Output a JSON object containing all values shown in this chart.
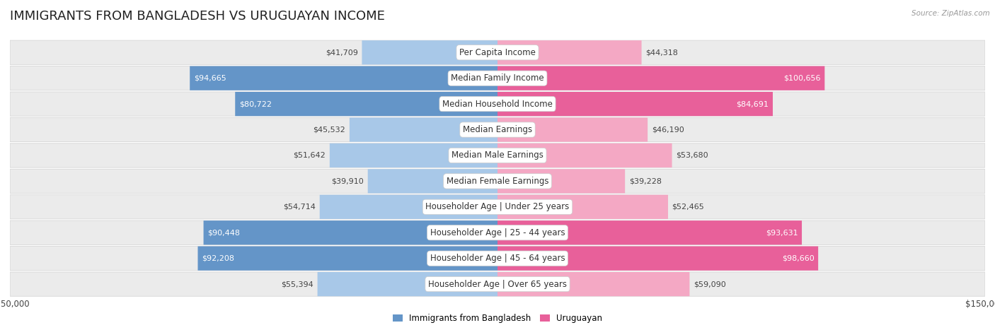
{
  "title": "IMMIGRANTS FROM BANGLADESH VS URUGUAYAN INCOME",
  "source": "Source: ZipAtlas.com",
  "categories": [
    "Per Capita Income",
    "Median Family Income",
    "Median Household Income",
    "Median Earnings",
    "Median Male Earnings",
    "Median Female Earnings",
    "Householder Age | Under 25 years",
    "Householder Age | 25 - 44 years",
    "Householder Age | 45 - 64 years",
    "Householder Age | Over 65 years"
  ],
  "bangladesh_values": [
    41709,
    94665,
    80722,
    45532,
    51642,
    39910,
    54714,
    90448,
    92208,
    55394
  ],
  "uruguayan_values": [
    44318,
    100656,
    84691,
    46190,
    53680,
    39228,
    52465,
    93631,
    98660,
    59090
  ],
  "bangladesh_color_dark": "#6495c8",
  "bangladesh_color_light": "#a8c8e8",
  "uruguayan_color_dark": "#e8609a",
  "uruguayan_color_light": "#f4a8c4",
  "bangladesh_label": "Immigrants from Bangladesh",
  "uruguayan_label": "Uruguayan",
  "max_value": 150000,
  "row_bg_color": "#ebebeb",
  "title_fontsize": 13,
  "label_fontsize": 8.5,
  "value_fontsize": 8,
  "inside_threshold": 0.45
}
